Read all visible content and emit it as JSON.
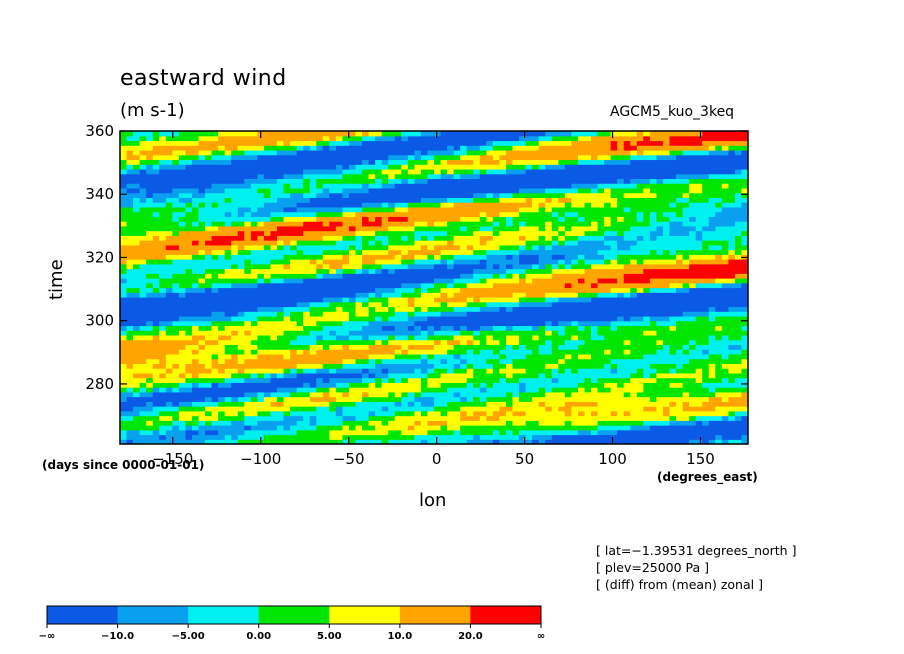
{
  "chart_data": {
    "type": "heatmap",
    "title": "eastward wind",
    "units": "(m s-1)",
    "model": "AGCM5_kuo_3keq",
    "xlabel": "lon",
    "ylabel": "time",
    "x_units": "(degrees_east)",
    "y_units": "(days since 0000-01-01)",
    "xlim": [
      -180,
      177
    ],
    "ylim": [
      261,
      360
    ],
    "x_ticks": [
      -150,
      -100,
      -50,
      0,
      50,
      100,
      150
    ],
    "x_tick_labels": [
      "−150",
      "−100",
      "−50",
      "0",
      "50",
      "100",
      "150"
    ],
    "y_ticks": [
      280,
      300,
      320,
      340,
      360
    ],
    "y_tick_labels": [
      "280",
      "300",
      "320",
      "340",
      "360"
    ],
    "info": [
      "[ lat=−1.39531 degrees_north ]",
      "[ plev=25000 Pa ]",
      "[ (diff) from (mean) zonal ]"
    ],
    "colorbar": {
      "colors": [
        "#0a5ae6",
        "#0aa0f0",
        "#00f0f0",
        "#00e600",
        "#ffff00",
        "#ffa500",
        "#ff0000"
      ],
      "labels": [
        "−∞",
        "−10.0",
        "−5.00",
        "0.00",
        "5.00",
        "10.0",
        "20.0",
        "∞"
      ]
    }
  }
}
